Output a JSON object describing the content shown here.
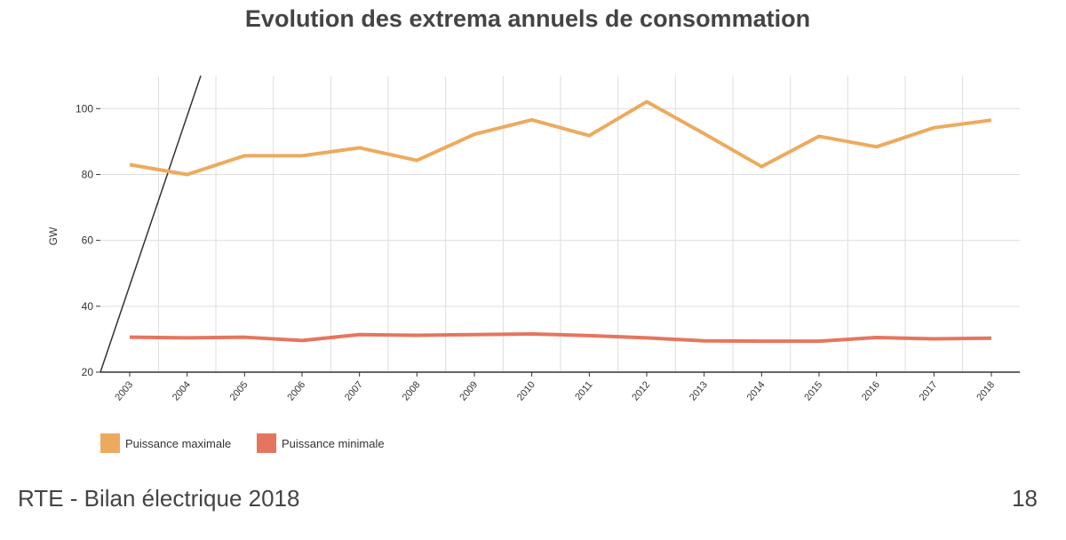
{
  "chart_data": {
    "type": "line",
    "title": "Evolution des extrema annuels de consommation",
    "xlabel": "",
    "ylabel": "GW",
    "x": [
      "2003",
      "2004",
      "2005",
      "2006",
      "2007",
      "2008",
      "2009",
      "2010",
      "2011",
      "2012",
      "2013",
      "2014",
      "2015",
      "2016",
      "2017",
      "2018"
    ],
    "ylim": [
      20,
      110
    ],
    "yticks": [
      20,
      40,
      60,
      80,
      100
    ],
    "grid": true,
    "legend_position": "bottom-left",
    "series": [
      {
        "name": "Puissance maximale",
        "color": "#EDAA5E",
        "values": [
          83.0,
          80.0,
          85.7,
          85.7,
          88.1,
          84.3,
          92.2,
          96.6,
          91.8,
          102.1,
          92.4,
          82.4,
          91.6,
          88.4,
          94.2,
          96.5
        ]
      },
      {
        "name": "Puissance minimale",
        "color": "#E5765E",
        "values": [
          30.6,
          30.4,
          30.6,
          29.6,
          31.4,
          31.2,
          31.4,
          31.6,
          31.1,
          30.4,
          29.5,
          29.4,
          29.4,
          30.5,
          30.1,
          30.3
        ]
      }
    ]
  },
  "footer": {
    "source": "RTE - Bilan électrique 2018",
    "page": "18"
  }
}
